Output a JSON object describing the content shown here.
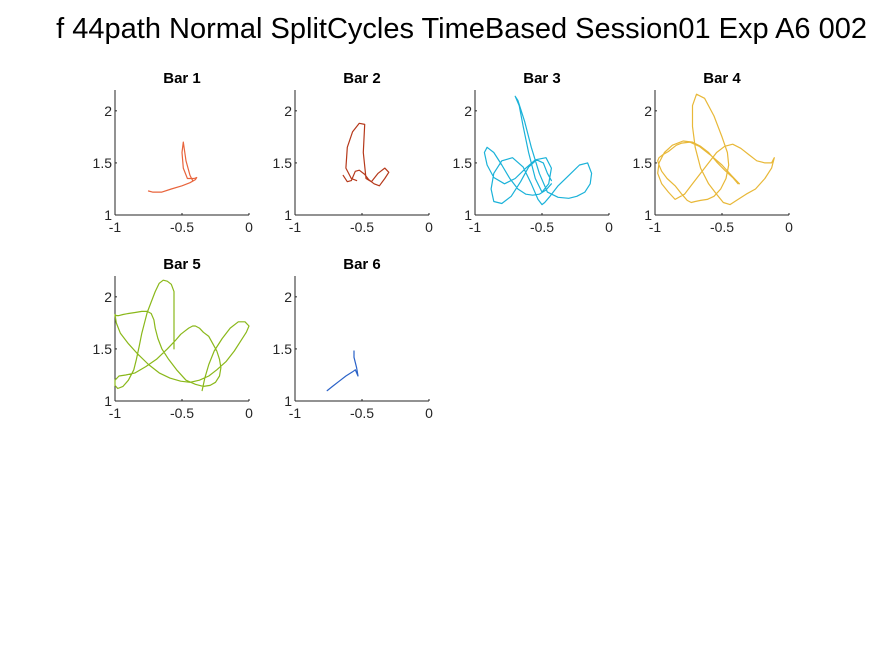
{
  "figure": {
    "title": "f 44path Normal SplitCycles TimeBased Session01 Exp A6 002"
  },
  "chart_data": [
    {
      "type": "line",
      "title": "Bar 1",
      "color": "#e8643c",
      "xlim": [
        -1,
        0
      ],
      "ylim": [
        1,
        2.2
      ],
      "xticks": [
        "-1",
        "-0.5",
        "0"
      ],
      "yticks": [
        "1",
        "1.5",
        "2"
      ],
      "x": [
        -0.75,
        -0.72,
        -0.65,
        -0.58,
        -0.5,
        -0.44,
        -0.4,
        -0.39,
        -0.41,
        -0.46,
        -0.49,
        -0.5,
        -0.49,
        -0.47,
        -0.44,
        -0.42
      ],
      "y": [
        1.23,
        1.22,
        1.22,
        1.25,
        1.28,
        1.31,
        1.34,
        1.36,
        1.35,
        1.35,
        1.45,
        1.6,
        1.7,
        1.52,
        1.38,
        1.33
      ]
    },
    {
      "type": "line",
      "title": "Bar 2",
      "color": "#b5381a",
      "xlim": [
        -1,
        0
      ],
      "ylim": [
        1,
        2.2
      ],
      "xticks": [
        "-1",
        "-0.5",
        "0"
      ],
      "yticks": [
        "1",
        "1.5",
        "2"
      ],
      "x": [
        -0.64,
        -0.61,
        -0.58,
        -0.55,
        -0.52,
        -0.48,
        -0.45,
        -0.41,
        -0.37,
        -0.33,
        -0.3,
        -0.33,
        -0.38,
        -0.43,
        -0.47,
        -0.49,
        -0.48,
        -0.52,
        -0.57,
        -0.61,
        -0.62,
        -0.58,
        -0.54
      ],
      "y": [
        1.38,
        1.32,
        1.33,
        1.42,
        1.43,
        1.39,
        1.34,
        1.3,
        1.28,
        1.35,
        1.41,
        1.45,
        1.4,
        1.32,
        1.35,
        1.6,
        1.87,
        1.88,
        1.8,
        1.65,
        1.45,
        1.35,
        1.33
      ]
    },
    {
      "type": "line",
      "title": "Bar 3",
      "color": "#1ab2d9",
      "xlim": [
        -1,
        0
      ],
      "ylim": [
        1,
        2.2
      ],
      "xticks": [
        "-1",
        "-0.5",
        "0"
      ],
      "yticks": [
        "1",
        "1.5",
        "2"
      ],
      "x": [
        -0.43,
        -0.47,
        -0.52,
        -0.57,
        -0.62,
        -0.68,
        -0.74,
        -0.8,
        -0.86,
        -0.91,
        -0.93,
        -0.91,
        -0.86,
        -0.78,
        -0.7,
        -0.62,
        -0.55,
        -0.47,
        -0.43,
        -0.45,
        -0.5,
        -0.55,
        -0.6,
        -0.64,
        -0.67,
        -0.7,
        -0.68,
        -0.63,
        -0.58,
        -0.52,
        -0.46,
        -0.38,
        -0.3,
        -0.24,
        -0.18,
        -0.14,
        -0.13,
        -0.16,
        -0.22,
        -0.3,
        -0.38,
        -0.44,
        -0.48,
        -0.5,
        -0.53,
        -0.58,
        -0.64,
        -0.72,
        -0.8,
        -0.86,
        -0.88,
        -0.86,
        -0.8,
        -0.73,
        -0.66,
        -0.6,
        -0.54,
        -0.49,
        -0.46,
        -0.43
      ],
      "y": [
        1.3,
        1.24,
        1.2,
        1.19,
        1.2,
        1.25,
        1.35,
        1.48,
        1.6,
        1.65,
        1.6,
        1.48,
        1.36,
        1.3,
        1.35,
        1.45,
        1.53,
        1.55,
        1.45,
        1.3,
        1.22,
        1.35,
        1.6,
        1.85,
        2.05,
        2.14,
        2.1,
        1.9,
        1.65,
        1.4,
        1.22,
        1.17,
        1.16,
        1.18,
        1.22,
        1.3,
        1.4,
        1.5,
        1.48,
        1.38,
        1.28,
        1.18,
        1.12,
        1.1,
        1.15,
        1.3,
        1.46,
        1.55,
        1.52,
        1.4,
        1.25,
        1.13,
        1.11,
        1.18,
        1.32,
        1.46,
        1.53,
        1.5,
        1.4,
        1.33
      ]
    },
    {
      "type": "line",
      "title": "Bar 4",
      "color": "#e8b838",
      "xlim": [
        -1,
        0
      ],
      "ylim": [
        1,
        2.2
      ],
      "xticks": [
        "-1",
        "-0.5",
        "0"
      ],
      "yticks": [
        "1",
        "1.5",
        "2"
      ],
      "x": [
        -0.38,
        -0.42,
        -0.48,
        -0.54,
        -0.6,
        -0.66,
        -0.72,
        -0.79,
        -0.87,
        -0.93,
        -0.97,
        -0.98,
        -0.95,
        -0.9,
        -0.85,
        -0.78,
        -0.72,
        -0.66,
        -0.6,
        -0.54,
        -0.48,
        -0.42,
        -0.36,
        -0.3,
        -0.24,
        -0.18,
        -0.13,
        -0.11,
        -0.13,
        -0.18,
        -0.25,
        -0.32,
        -0.38,
        -0.44,
        -0.49,
        -0.54,
        -0.6,
        -0.66,
        -0.7,
        -0.72,
        -0.72,
        -0.69,
        -0.63,
        -0.56,
        -0.5,
        -0.46,
        -0.45,
        -0.47,
        -0.51,
        -0.56,
        -0.61,
        -0.66,
        -0.7,
        -0.73,
        -0.76,
        -0.8,
        -0.85,
        -0.91,
        -0.95,
        -0.97,
        -0.98,
        -0.97,
        -0.94,
        -0.9,
        -0.87,
        -0.84,
        -0.8,
        -0.74,
        -0.67,
        -0.59,
        -0.5,
        -0.43,
        -0.37
      ],
      "y": [
        1.3,
        1.36,
        1.43,
        1.51,
        1.6,
        1.66,
        1.7,
        1.71,
        1.67,
        1.6,
        1.5,
        1.4,
        1.3,
        1.22,
        1.15,
        1.2,
        1.3,
        1.4,
        1.5,
        1.6,
        1.66,
        1.68,
        1.64,
        1.58,
        1.52,
        1.5,
        1.5,
        1.55,
        1.45,
        1.35,
        1.25,
        1.2,
        1.15,
        1.1,
        1.12,
        1.2,
        1.3,
        1.45,
        1.65,
        1.85,
        2.05,
        2.16,
        2.12,
        1.95,
        1.75,
        1.6,
        1.48,
        1.35,
        1.25,
        1.18,
        1.15,
        1.14,
        1.13,
        1.12,
        1.14,
        1.2,
        1.28,
        1.35,
        1.42,
        1.48,
        1.52,
        1.55,
        1.58,
        1.61,
        1.64,
        1.67,
        1.69,
        1.7,
        1.66,
        1.58,
        1.48,
        1.38,
        1.3
      ]
    },
    {
      "type": "line",
      "title": "Bar 5",
      "color": "#8ab81a",
      "xlim": [
        -1,
        0
      ],
      "ylim": [
        1,
        2.2
      ],
      "xticks": [
        "-1",
        "-0.5",
        "0"
      ],
      "yticks": [
        "1",
        "1.5",
        "2"
      ],
      "x": [
        -0.56,
        -0.56,
        -0.56,
        -0.56,
        -0.58,
        -0.61,
        -0.64,
        -0.67,
        -0.7,
        -0.73,
        -0.76,
        -0.78,
        -0.8,
        -0.82,
        -0.84,
        -0.86,
        -0.9,
        -0.94,
        -0.98,
        -1.0,
        -1.0,
        -0.97,
        -0.92,
        -0.85,
        -0.77,
        -0.69,
        -0.61,
        -0.55,
        -0.51,
        -0.48,
        -0.45,
        -0.42,
        -0.4,
        -0.37,
        -0.34,
        -0.3,
        -0.27,
        -0.24,
        -0.22,
        -0.21,
        -0.22,
        -0.25,
        -0.29,
        -0.34,
        -0.4,
        -0.47,
        -0.54,
        -0.6,
        -0.65,
        -0.68,
        -0.7,
        -0.71,
        -0.73,
        -0.76,
        -0.8,
        -0.85,
        -0.9,
        -0.94,
        -0.97,
        -0.99,
        -1.0,
        -0.99,
        -0.96,
        -0.9,
        -0.83,
        -0.75,
        -0.67,
        -0.59,
        -0.51,
        -0.44,
        -0.37,
        -0.3,
        -0.24,
        -0.17,
        -0.11,
        -0.06,
        -0.02,
        0.0,
        -0.03,
        -0.08,
        -0.14,
        -0.2,
        -0.26,
        -0.3,
        -0.33,
        -0.35
      ],
      "y": [
        1.5,
        1.7,
        1.9,
        2.05,
        2.12,
        2.15,
        2.16,
        2.13,
        2.05,
        1.95,
        1.85,
        1.75,
        1.65,
        1.52,
        1.4,
        1.3,
        1.2,
        1.14,
        1.12,
        1.15,
        1.2,
        1.24,
        1.25,
        1.27,
        1.33,
        1.4,
        1.5,
        1.58,
        1.64,
        1.67,
        1.7,
        1.72,
        1.72,
        1.7,
        1.66,
        1.62,
        1.55,
        1.48,
        1.4,
        1.32,
        1.24,
        1.18,
        1.15,
        1.14,
        1.16,
        1.2,
        1.3,
        1.4,
        1.5,
        1.6,
        1.7,
        1.78,
        1.84,
        1.86,
        1.86,
        1.85,
        1.84,
        1.83,
        1.82,
        1.82,
        1.83,
        1.75,
        1.65,
        1.55,
        1.45,
        1.35,
        1.27,
        1.22,
        1.19,
        1.18,
        1.2,
        1.24,
        1.3,
        1.38,
        1.48,
        1.58,
        1.66,
        1.72,
        1.76,
        1.76,
        1.7,
        1.6,
        1.48,
        1.35,
        1.22,
        1.1
      ]
    },
    {
      "type": "line",
      "title": "Bar 6",
      "color": "#2a62c8",
      "xlim": [
        -1,
        0
      ],
      "ylim": [
        1,
        2.2
      ],
      "xticks": [
        "-1",
        "-0.5",
        "0"
      ],
      "yticks": [
        "1",
        "1.5",
        "2"
      ],
      "x": [
        -0.76,
        -0.72,
        -0.67,
        -0.62,
        -0.57,
        -0.55,
        -0.53,
        -0.54,
        -0.56,
        -0.56
      ],
      "y": [
        1.1,
        1.14,
        1.19,
        1.24,
        1.28,
        1.3,
        1.24,
        1.32,
        1.42,
        1.48
      ]
    }
  ]
}
